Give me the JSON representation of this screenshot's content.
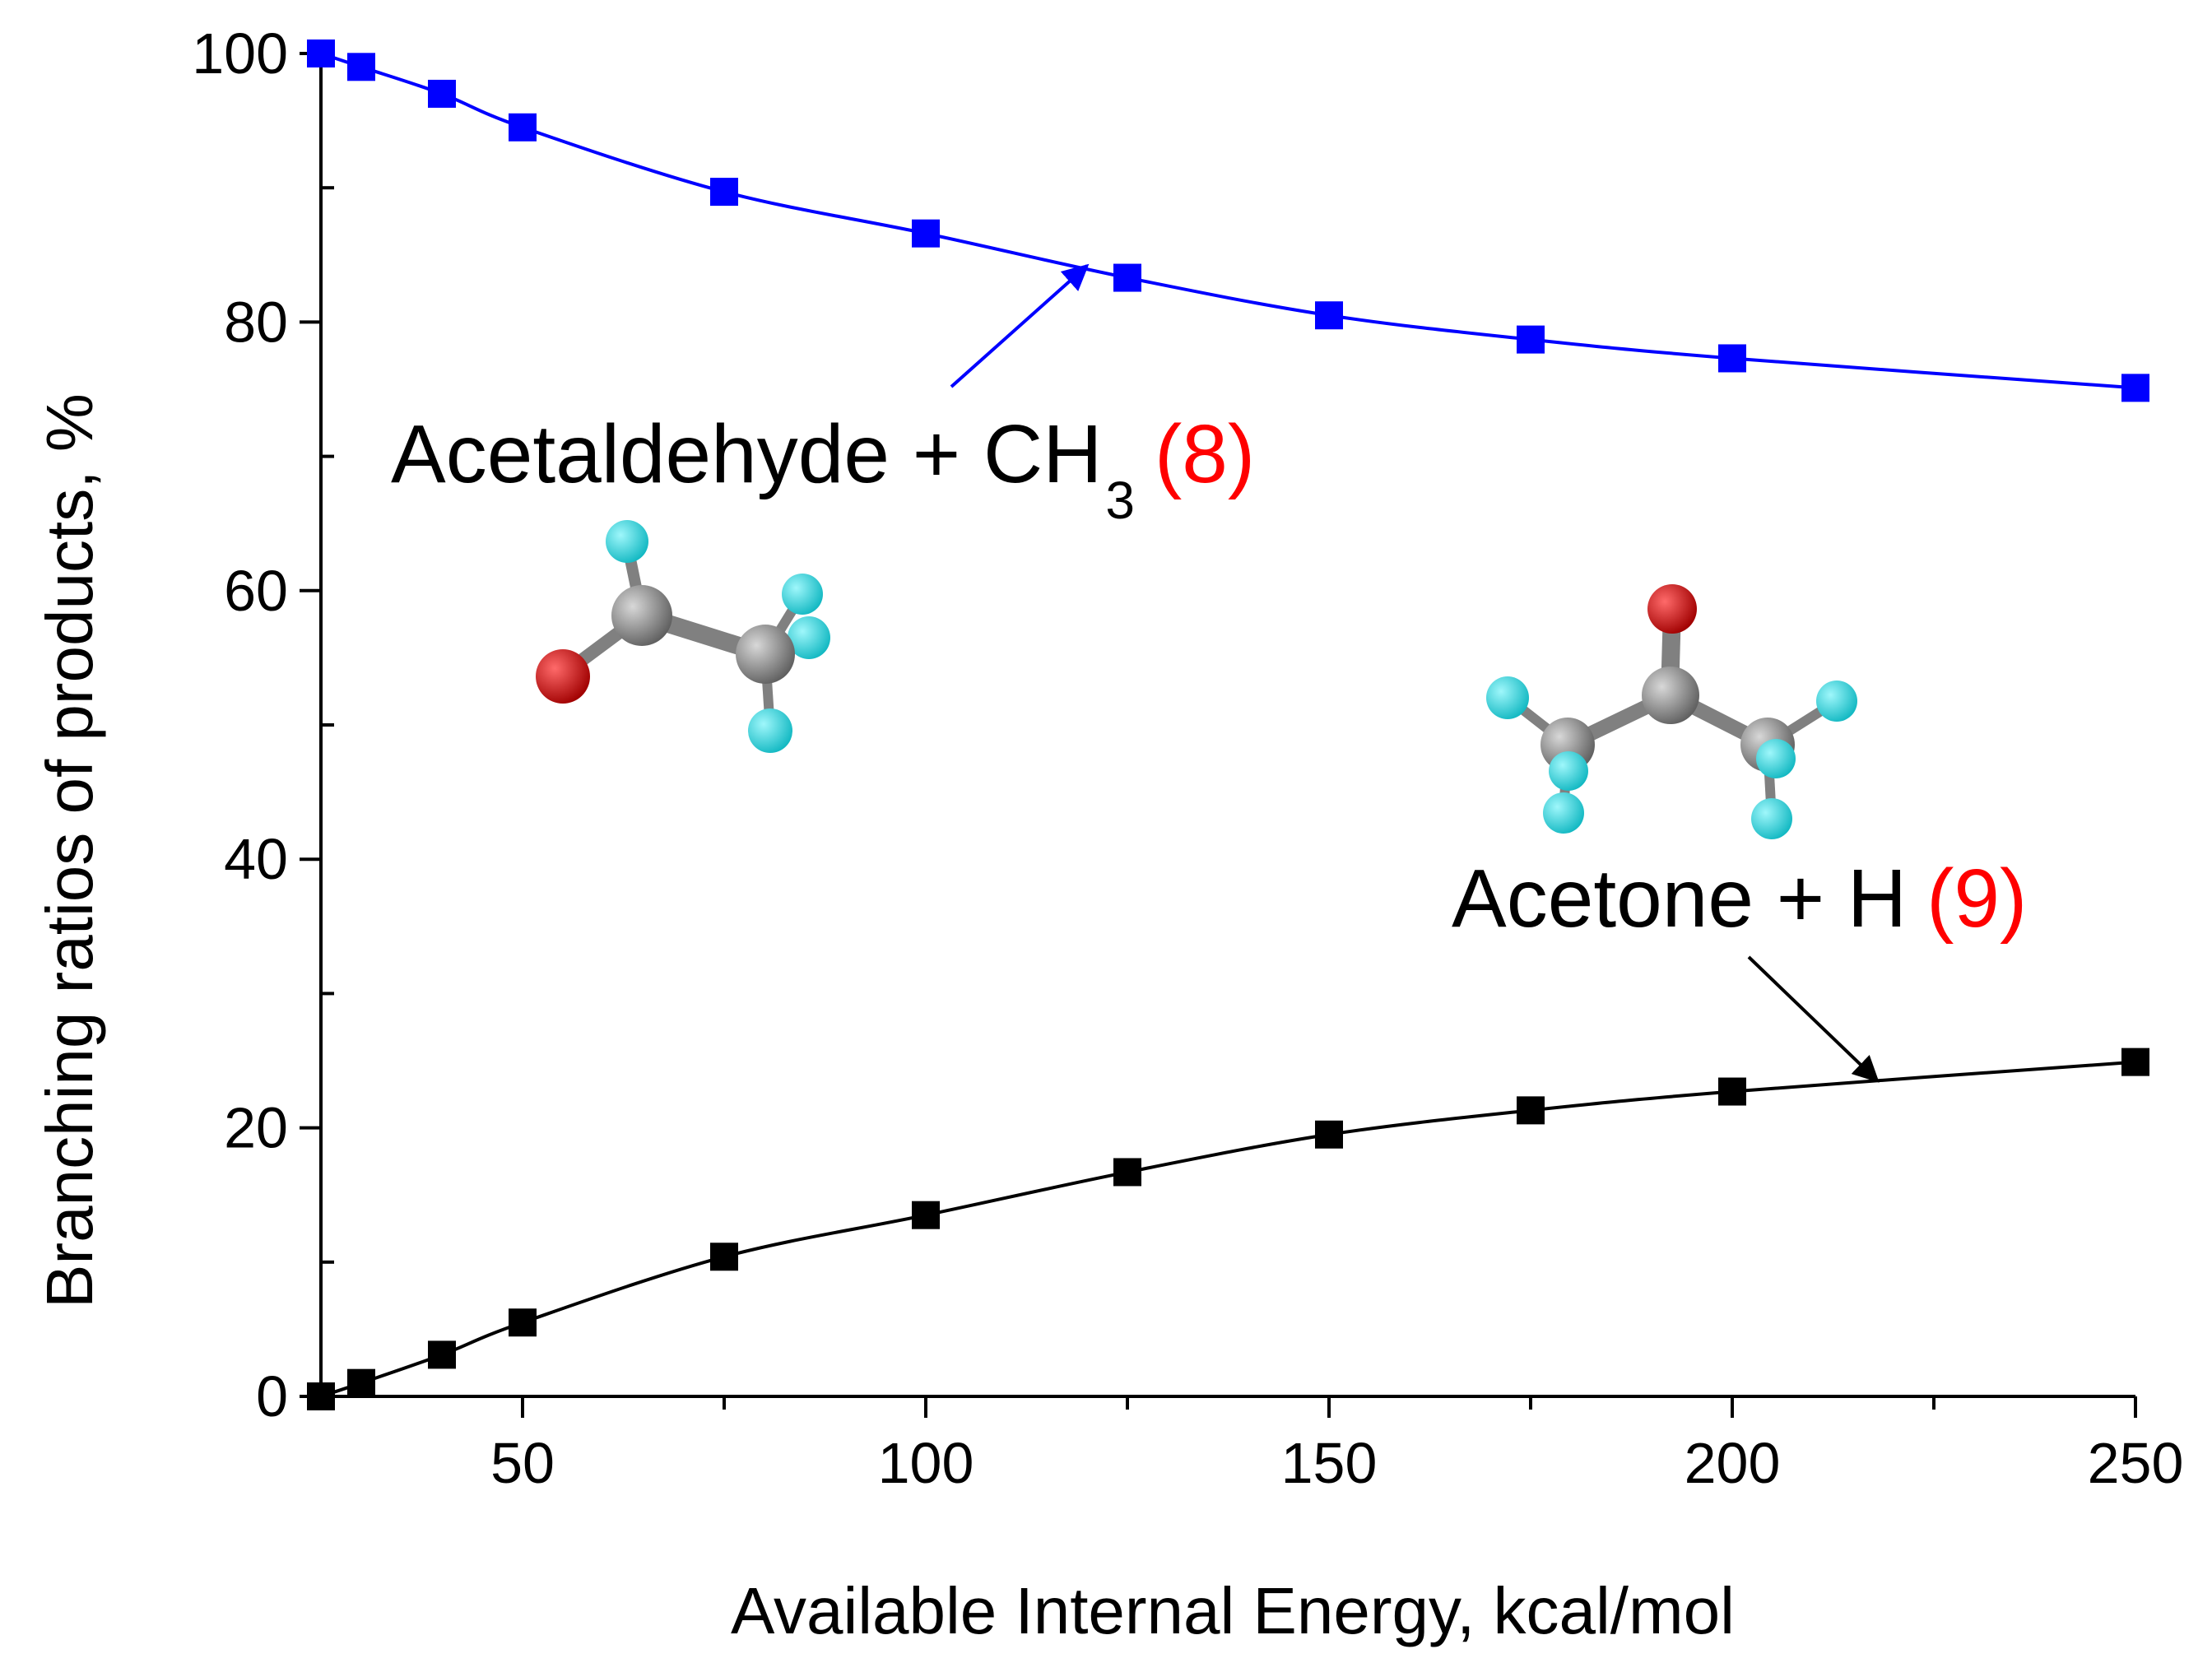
{
  "chart_data": {
    "type": "line",
    "title": "",
    "xlabel": "Available Internal Energy, kcal/mol",
    "ylabel": "Branching ratios of products, %",
    "xlim": [
      25,
      250
    ],
    "ylim": [
      0,
      100
    ],
    "xticks": [
      50,
      100,
      150,
      200,
      250
    ],
    "yticks": [
      0,
      20,
      40,
      60,
      80,
      100
    ],
    "grid": false,
    "legend": "none",
    "x": [
      25,
      30,
      40,
      50,
      75,
      100,
      125,
      150,
      175,
      200,
      250
    ],
    "series": [
      {
        "color": "#0000ff",
        "values": [
          100,
          99,
          97,
          94.5,
          89.7,
          86.6,
          83.3,
          80.5,
          78.7,
          77.3,
          75.1
        ],
        "annotation": {
          "text": "Acetaldehyde + CH",
          "subscript": "3",
          "number": "(8)",
          "arrow_to": [
            120,
            84.2
          ]
        }
      },
      {
        "color": "#000000",
        "values": [
          0,
          1.0,
          3.1,
          5.5,
          10.4,
          13.5,
          16.7,
          19.5,
          21.3,
          22.7,
          24.9
        ],
        "annotation": {
          "text": "Acetone + H",
          "number": "(9)",
          "arrow_to": [
            218,
            23.5
          ]
        }
      }
    ],
    "molecules": [
      "acetyl-radical-molecule",
      "acetone-molecule"
    ],
    "atom_colors": {
      "carbon": "#808080",
      "oxygen": "#cc0000",
      "hydrogen": "#1fd3dc"
    }
  }
}
